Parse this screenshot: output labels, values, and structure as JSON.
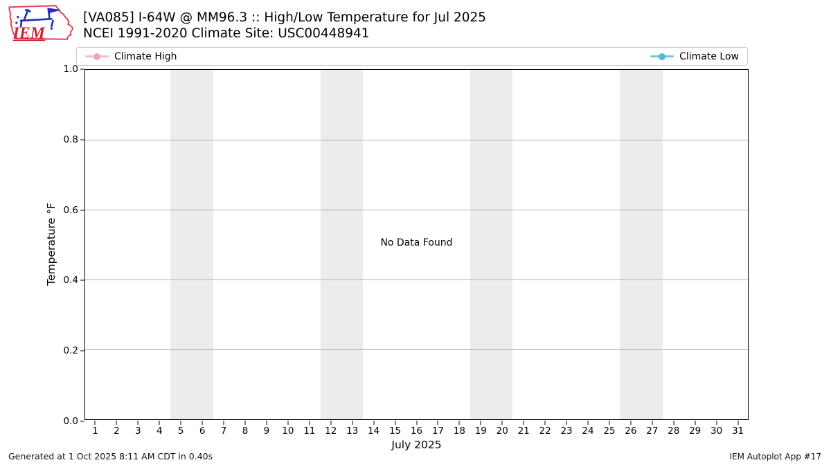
{
  "header": {
    "logo_text": "IEM",
    "title_line1": "[VA085] I-64W @ MM96.3 :: High/Low Temperature for Jul 2025",
    "title_line2": "NCEI 1991-2020 Climate Site: USC00448941"
  },
  "legend": {
    "items": [
      {
        "label": "Climate High",
        "line_color": "#f8bcc8",
        "marker_color": "#f4a5b8",
        "position": "left"
      },
      {
        "label": "Climate Low",
        "line_color": "#74c4e4",
        "marker_color": "#58b8dc",
        "position": "right"
      }
    ]
  },
  "chart_data": {
    "type": "line",
    "title": "[VA085] I-64W @ MM96.3 :: High/Low Temperature for Jul 2025",
    "subtitle": "NCEI 1991-2020 Climate Site: USC00448941",
    "xlabel": "July 2025",
    "ylabel": "Temperature °F",
    "xlim": [
      0.5,
      31.5
    ],
    "ylim": [
      0.0,
      1.0
    ],
    "x_ticks": [
      1,
      2,
      3,
      4,
      5,
      6,
      7,
      8,
      9,
      10,
      11,
      12,
      13,
      14,
      15,
      16,
      17,
      18,
      19,
      20,
      21,
      22,
      23,
      24,
      25,
      26,
      27,
      28,
      29,
      30,
      31
    ],
    "y_ticks": [
      "0.0",
      "0.2",
      "0.4",
      "0.6",
      "0.8",
      "1.0"
    ],
    "gridlines": [
      0.2,
      0.4,
      0.6,
      0.8
    ],
    "grid_color": "#b0b0b0",
    "weekend_bands": [
      [
        4.5,
        6.5
      ],
      [
        11.5,
        13.5
      ],
      [
        18.5,
        20.5
      ],
      [
        25.5,
        27.5
      ]
    ],
    "band_color": "#ececec",
    "series": [
      {
        "name": "Climate High",
        "x": [],
        "values": []
      },
      {
        "name": "Climate Low",
        "x": [],
        "values": []
      }
    ],
    "no_data_text": "No Data Found",
    "legend_position": "top expanded, two columns"
  },
  "footer": {
    "generated": "Generated at 1 Oct 2025 8:11 AM CDT in 0.40s",
    "app": "IEM Autoplot App #17"
  }
}
